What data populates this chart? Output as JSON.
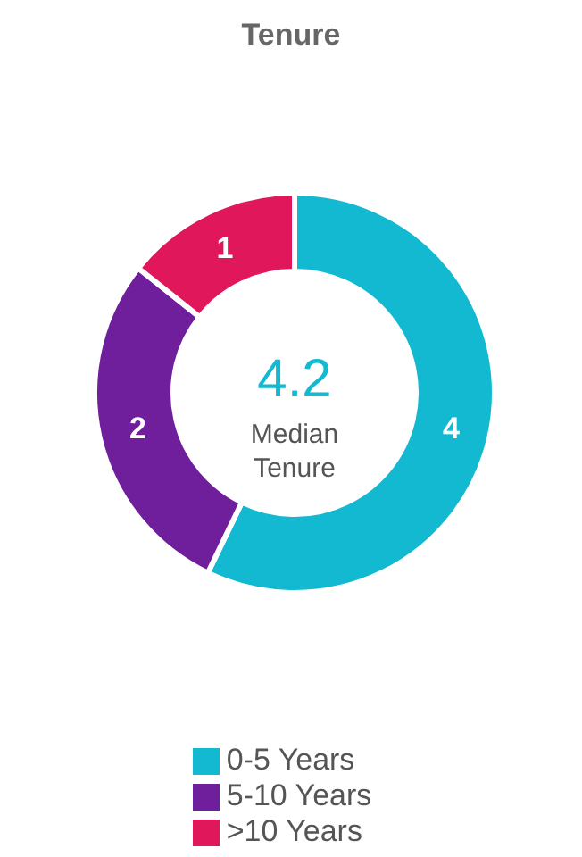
{
  "chart_data": {
    "type": "donut",
    "title": "Tenure",
    "categories": [
      "0-5 Years",
      "5-10 Years",
      ">10 Years"
    ],
    "values": [
      4,
      2,
      1
    ],
    "colors": [
      "#13b9d1",
      "#6f1e9c",
      "#e0175a"
    ],
    "data_labels": true,
    "legend": "bottom",
    "annotations": [
      "4.2",
      "Median Tenure"
    ]
  }
}
